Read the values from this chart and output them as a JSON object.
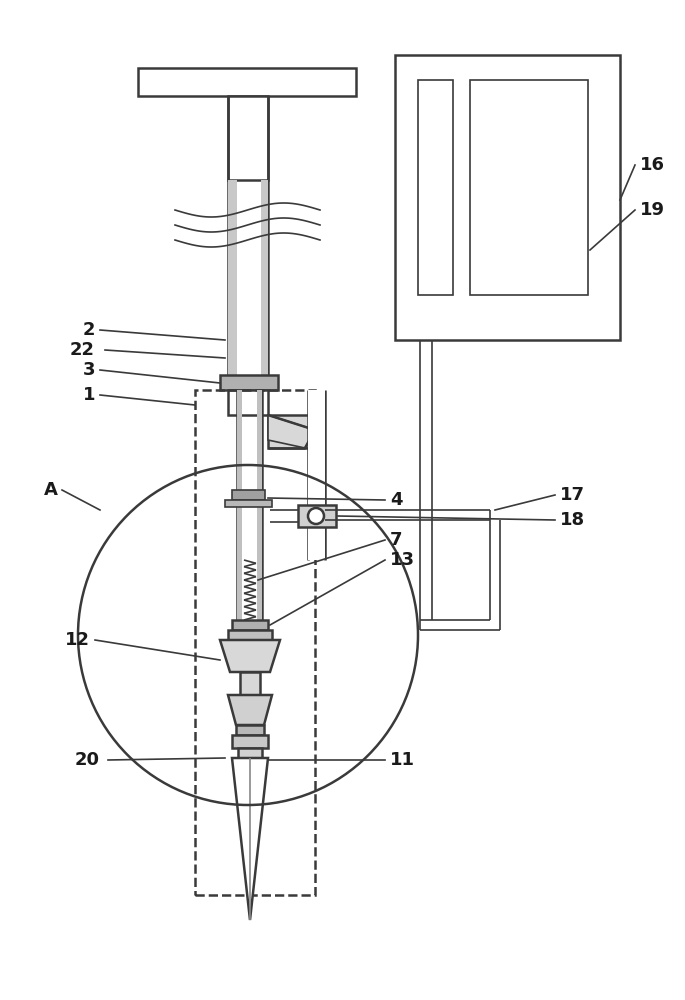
{
  "bg_color": "#ffffff",
  "line_color": "#3a3a3a",
  "lw_main": 1.8,
  "lw_thin": 1.2,
  "fig_width": 6.85,
  "fig_height": 10.0
}
